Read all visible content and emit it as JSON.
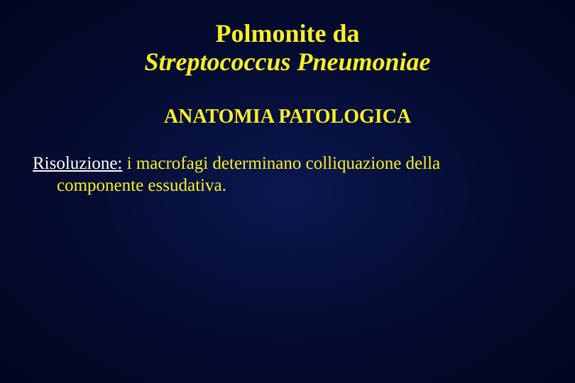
{
  "colors": {
    "background_center": "#0a1850",
    "background_mid": "#050c32",
    "background_edge": "#02061f",
    "accent_text": "#f7f02a",
    "label_text": "#ffffff"
  },
  "typography": {
    "font_family": "Times New Roman",
    "title_fontsize_pt": 36,
    "title_weight": "bold",
    "subtitle_fontsize_pt": 28,
    "subtitle_weight": "bold",
    "body_fontsize_pt": 25
  },
  "title": {
    "line1": "Polmonite da",
    "line2": "Streptococcus Pneumoniae"
  },
  "subtitle": "ANATOMIA PATOLOGICA",
  "body": {
    "label": "Risoluzione:",
    "text_after_label": " i macrofagi determinano colliquazione della",
    "line2": "componente essudativa."
  }
}
